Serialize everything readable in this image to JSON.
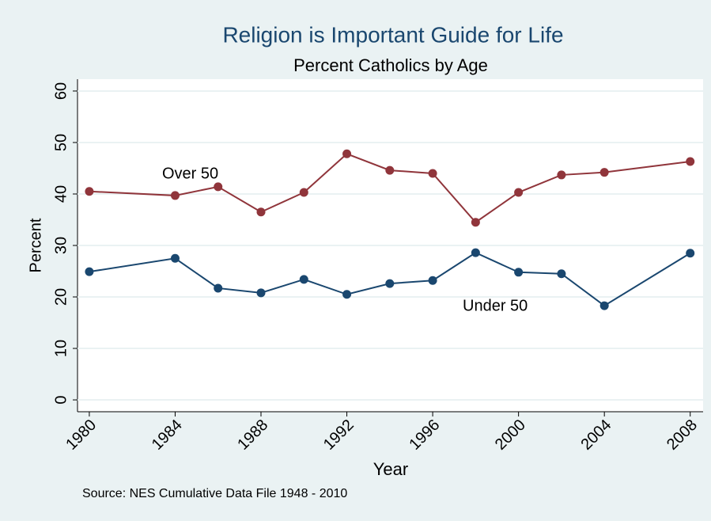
{
  "chart_data": {
    "type": "line",
    "title": "Religion is Important Guide for Life",
    "subtitle": "Percent Catholics by Age",
    "x_label": "Year",
    "y_label": "Percent",
    "note": "Source:  NES Cumulative Data File 1948 - 2010",
    "x": [
      1980,
      1984,
      1986,
      1988,
      1990,
      1992,
      1994,
      1996,
      1998,
      2000,
      2002,
      2004,
      2008
    ],
    "series": [
      {
        "name": "Over 50",
        "color": "#90353b",
        "values": [
          40.5,
          39.7,
          41.4,
          36.5,
          40.3,
          47.8,
          44.6,
          44.0,
          34.5,
          40.3,
          43.7,
          44.2,
          46.3
        ]
      },
      {
        "name": "Under 50",
        "color": "#1a476f",
        "values": [
          24.9,
          27.5,
          21.7,
          20.8,
          23.4,
          20.5,
          22.6,
          23.2,
          28.6,
          24.8,
          24.5,
          18.3,
          28.5
        ]
      }
    ],
    "xlim": [
      1979.45,
      2008.6
    ],
    "xticks": [
      1980,
      1984,
      1988,
      1992,
      1996,
      2000,
      2004,
      2008
    ],
    "ylim": [
      -2.3,
      62.3
    ],
    "yticks": [
      0,
      10,
      20,
      30,
      40,
      50,
      60
    ],
    "grid": true
  }
}
